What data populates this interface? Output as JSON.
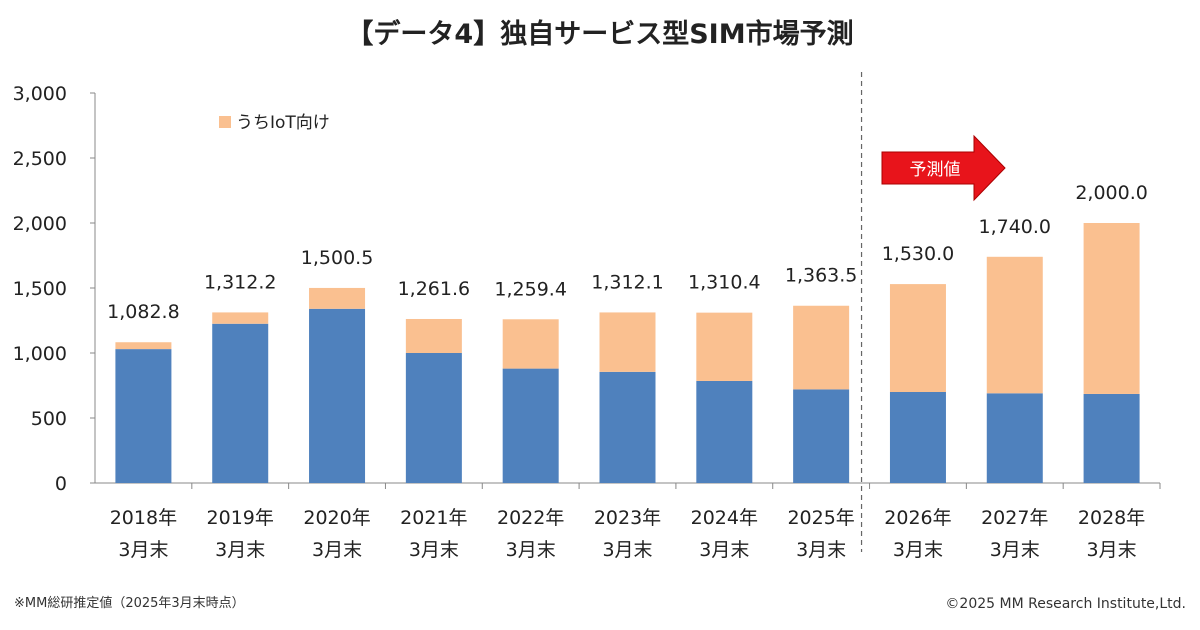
{
  "chart_data": {
    "type": "bar",
    "stacked": true,
    "title": "【データ4】独自サービス型SIM市場予測",
    "categories": [
      [
        "2018年",
        "3月末"
      ],
      [
        "2019年",
        "3月末"
      ],
      [
        "2020年",
        "3月末"
      ],
      [
        "2021年",
        "3月末"
      ],
      [
        "2022年",
        "3月末"
      ],
      [
        "2023年",
        "3月末"
      ],
      [
        "2024年",
        "3月末"
      ],
      [
        "2025年",
        "3月末"
      ],
      [
        "2026年",
        "3月末"
      ],
      [
        "2027年",
        "3月末"
      ],
      [
        "2028年",
        "3月末"
      ]
    ],
    "series": [
      {
        "values": [
          1030,
          1225,
          1340,
          1000,
          880,
          855,
          785,
          720,
          700,
          690,
          685
        ],
        "color": "#4f81bd"
      },
      {
        "name": "うちIoT向け",
        "values": [
          52.8,
          87.2,
          160.5,
          261.6,
          379.4,
          457.1,
          525.4,
          643.5,
          830.0,
          1050.0,
          1315.0
        ],
        "color": "#fac090"
      }
    ],
    "totals": [
      1082.8,
      1312.2,
      1500.5,
      1261.6,
      1259.4,
      1312.1,
      1310.4,
      1363.5,
      1530.0,
      1740.0,
      2000.0
    ],
    "total_labels": [
      "1,082.8",
      "1,312.2",
      "1,500.5",
      "1,261.6",
      "1,259.4",
      "1,312.1",
      "1,310.4",
      "1,363.5",
      "1,530.0",
      "1,740.0",
      "2,000.0"
    ],
    "ylim": [
      0,
      3000
    ],
    "yticks": [
      0,
      500,
      1000,
      1500,
      2000,
      2500,
      3000
    ],
    "ytick_labels": [
      "0",
      "500",
      "1,000",
      "1,500",
      "2,000",
      "2,500",
      "3,000"
    ],
    "grid": false,
    "legend_position": "top-left",
    "forecast_start_index": 8,
    "forecast_label": "予測値",
    "forecast_arrow_color": "#e8141b"
  },
  "footnote": "※MM総研推定値（2025年3月末時点）",
  "copyright": "©2025 MM Research Institute,Ltd."
}
